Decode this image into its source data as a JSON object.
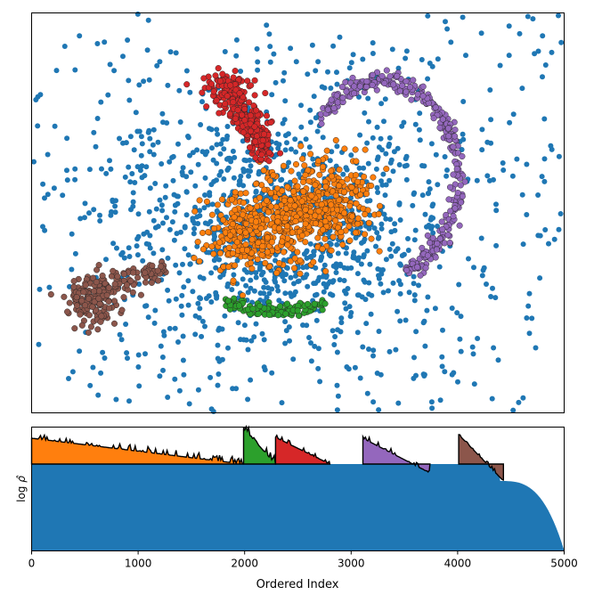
{
  "chart_data": [
    {
      "type": "scatter",
      "title": "",
      "xlabel": "",
      "ylabel": "",
      "axes_ticks": "hidden",
      "grid": false,
      "series": [
        {
          "cluster": "background",
          "color": "#1f77b4",
          "edge": false,
          "count": 1400
        },
        {
          "cluster": "orange-center-blob",
          "color": "#ff7f0e",
          "edge": true,
          "count": 700
        },
        {
          "cluster": "red-upper-blob",
          "color": "#d62728",
          "edge": true,
          "count": 300
        },
        {
          "cluster": "purple-arc",
          "color": "#9467bd",
          "edge": true,
          "count": 320
        },
        {
          "cluster": "green-lower-arc",
          "color": "#2ca02c",
          "edge": true,
          "count": 120
        },
        {
          "cluster": "brown-left-blob",
          "color": "#8c564b",
          "edge": true,
          "count": 220
        }
      ]
    },
    {
      "type": "area",
      "title": "",
      "xlabel": "Ordered Index",
      "ylabel": "log ρ̂",
      "xlim": [
        0,
        5000
      ],
      "xticks": [
        "0",
        "1000",
        "2000",
        "3000",
        "4000",
        "5000"
      ],
      "grid": false,
      "regions": [
        {
          "color": "#1f77b4",
          "x": [
            0,
            5000
          ],
          "level": "base"
        },
        {
          "color": "#ff7f0e",
          "x": [
            0,
            1990
          ]
        },
        {
          "color": "#2ca02c",
          "x": [
            1990,
            2290
          ]
        },
        {
          "color": "#d62728",
          "x": [
            2290,
            2800
          ]
        },
        {
          "color": "#9467bd",
          "x": [
            3110,
            3740
          ]
        },
        {
          "color": "#8c564b",
          "x": [
            4010,
            4430
          ]
        }
      ]
    }
  ]
}
